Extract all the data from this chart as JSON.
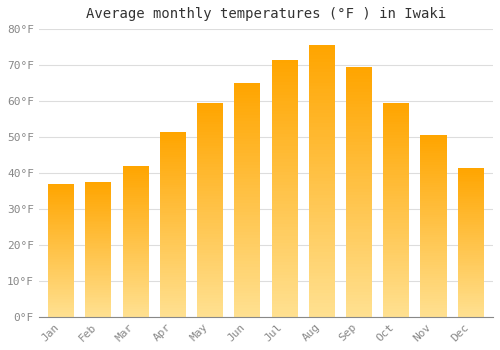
{
  "title": "Average monthly temperatures (°F ) in Iwaki",
  "months": [
    "Jan",
    "Feb",
    "Mar",
    "Apr",
    "May",
    "Jun",
    "Jul",
    "Aug",
    "Sep",
    "Oct",
    "Nov",
    "Dec"
  ],
  "values": [
    37,
    37.5,
    42,
    51.5,
    59.5,
    65,
    71.5,
    75.5,
    69.5,
    59.5,
    50.5,
    41.5
  ],
  "bar_color_top": "#FFA500",
  "bar_color_bottom": "#FFE090",
  "ylim": [
    0,
    80
  ],
  "yticks": [
    0,
    10,
    20,
    30,
    40,
    50,
    60,
    70,
    80
  ],
  "ytick_labels": [
    "0°F",
    "10°F",
    "20°F",
    "30°F",
    "40°F",
    "50°F",
    "60°F",
    "70°F",
    "80°F"
  ],
  "background_color": "#ffffff",
  "grid_color": "#dddddd",
  "title_fontsize": 10,
  "tick_fontsize": 8,
  "tick_color": "#888888",
  "font_family": "monospace",
  "bar_width": 0.7
}
